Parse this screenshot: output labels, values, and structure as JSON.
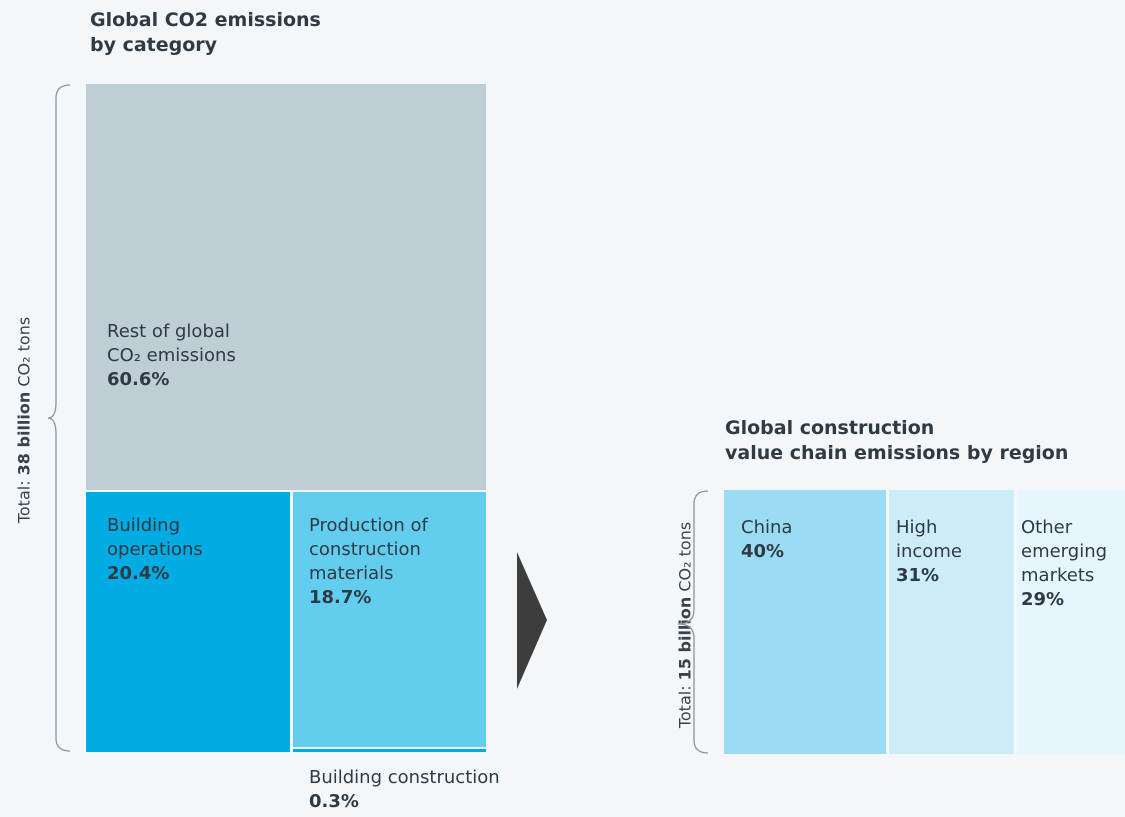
{
  "chart_data": [
    {
      "type": "treemap",
      "title": "Global CO2 emissions by category",
      "title_lines": [
        "Global CO2 emissions",
        "by category"
      ],
      "total_label": {
        "prefix": "Total: ",
        "bold": "38 billion",
        "suffix": " CO₂ tons"
      },
      "items": [
        {
          "name_lines": [
            "Rest of global",
            "CO₂ emissions"
          ],
          "value": 60.6,
          "label": "60.6%",
          "color": "#bfcdd5"
        },
        {
          "name_lines": [
            "Building",
            "operations"
          ],
          "value": 20.4,
          "label": "20.4%",
          "color": "#00ace3"
        },
        {
          "name_lines": [
            "Production of",
            "construction",
            "materials"
          ],
          "value": 18.7,
          "label": "18.7%",
          "color": "#62cdef"
        },
        {
          "name_lines": [
            "Building construction"
          ],
          "value": 0.3,
          "label": "0.3%",
          "color": "#00ace3"
        }
      ]
    },
    {
      "type": "treemap",
      "title": "Global construction value chain emissions by region",
      "title_lines": [
        "Global construction",
        "value chain emissions by region"
      ],
      "total_label": {
        "prefix": "Total: ",
        "bold": "15 billion",
        "suffix": " CO₂ tons"
      },
      "items": [
        {
          "name_lines": [
            "China"
          ],
          "value": 40,
          "label": "40%",
          "color": "#9adcf4"
        },
        {
          "name_lines": [
            "High",
            "income"
          ],
          "value": 31,
          "label": "31%",
          "color": "#ccedf8"
        },
        {
          "name_lines": [
            "Other",
            "emerging",
            "markets"
          ],
          "value": 29,
          "label": "29%",
          "color": "#e6f6fc"
        }
      ]
    }
  ]
}
